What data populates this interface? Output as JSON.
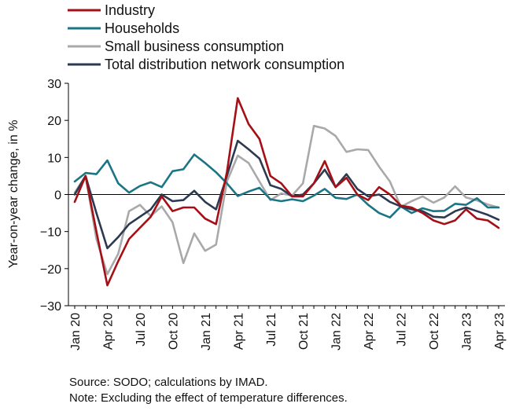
{
  "chart_data": {
    "type": "line",
    "ylabel": "Year-on-year change, in %",
    "ylim": [
      -30,
      30
    ],
    "yticks": [
      30,
      20,
      10,
      0,
      -10,
      -20,
      -30
    ],
    "x": [
      "Jan 20",
      "Feb 20",
      "Mar 20",
      "Apr 20",
      "May 20",
      "Jun 20",
      "Jul 20",
      "Aug 20",
      "Sep 20",
      "Oct 20",
      "Nov 20",
      "Dec 20",
      "Jan 21",
      "Feb 21",
      "Mar 21",
      "Apr 21",
      "May 21",
      "Jun 21",
      "Jul 21",
      "Aug 21",
      "Sep 21",
      "Oct 21",
      "Nov 21",
      "Dec 21",
      "Jan 22",
      "Feb 22",
      "Mar 22",
      "Apr 22",
      "May 22",
      "Jun 22",
      "Jul 22",
      "Aug 22",
      "Sep 22",
      "Oct 22",
      "Nov 22",
      "Dec 22",
      "Jan 23",
      "Feb 23",
      "Mar 23",
      "Apr 23"
    ],
    "xtick_labels": [
      "Jan 20",
      "Apr 20",
      "Jul 20",
      "Oct 20",
      "Jan 21",
      "Apr 21",
      "Jul 21",
      "Oct 21",
      "Jan 22",
      "Apr 22",
      "Jul 22",
      "Oct 22",
      "Jan 23",
      "Apr 23"
    ],
    "xtick_indices": [
      0,
      3,
      6,
      9,
      12,
      15,
      18,
      21,
      24,
      27,
      30,
      33,
      36,
      39
    ],
    "legend_position": "top-left",
    "grid": false,
    "series": [
      {
        "name": "Industry",
        "color": "#a50f15",
        "values": [
          -2,
          5,
          -10,
          -24.5,
          -18,
          -12,
          -9,
          -6,
          -0.5,
          -4.5,
          -3.5,
          -3.5,
          -6.5,
          -8,
          6,
          26,
          19,
          15,
          5,
          3,
          -0.5,
          -0.5,
          3,
          9,
          2,
          4.5,
          0,
          -1.5,
          2,
          0,
          -3,
          -3.5,
          -5,
          -7,
          -8,
          -7,
          -4,
          -6.5,
          -7,
          -9
        ]
      },
      {
        "name": "Households",
        "color": "#1c7584",
        "values": [
          3.5,
          5.8,
          5.5,
          9.2,
          3,
          0.5,
          2.3,
          3.3,
          2,
          6.3,
          6.8,
          10.8,
          8.5,
          6,
          3,
          -0.4,
          0.8,
          1.8,
          -1.3,
          -1.8,
          -1.3,
          -1.8,
          -0.3,
          1.5,
          -0.9,
          -1.2,
          0,
          -2.8,
          -5,
          -6.2,
          -3.2,
          -5,
          -3.7,
          -4.5,
          -4.4,
          -2.5,
          -2.8,
          -1,
          -3.5,
          -3.5
        ]
      },
      {
        "name": "Small business consumption",
        "color": "#a9a9a9",
        "values": [
          0.5,
          5,
          -12,
          -21.5,
          -16,
          -4.5,
          -2.8,
          -5.8,
          -3.2,
          -7.5,
          -18.5,
          -10.5,
          -15.2,
          -13.5,
          3.5,
          10.5,
          8.5,
          3.5,
          -1.5,
          0.3,
          -0.3,
          3,
          18.5,
          17.8,
          15.8,
          11.5,
          12.2,
          12,
          7.5,
          3.5,
          -3.3,
          -1.8,
          -0.5,
          -2.2,
          -0.8,
          2.2,
          -0.8,
          -1.6,
          -2.7,
          -3.5
        ]
      },
      {
        "name": "Total distribution network consumption",
        "color": "#2b3951",
        "values": [
          0,
          5,
          -5,
          -14.5,
          -11.5,
          -8,
          -6,
          -4,
          0,
          -1.8,
          -1.5,
          1,
          -2,
          -4,
          5,
          14.5,
          12.2,
          9.7,
          2.5,
          1.5,
          -0.5,
          0,
          3,
          6.7,
          2,
          5.5,
          1.5,
          -0.5,
          0,
          -2,
          -3.2,
          -4,
          -4.5,
          -6,
          -6.2,
          -4.5,
          -3.5,
          -4.5,
          -5.5,
          -6.8
        ]
      }
    ]
  },
  "footer": {
    "source": "Source: SODO; calculations by IMAD.",
    "note": "Note: Excluding the effect of temperature differences."
  }
}
